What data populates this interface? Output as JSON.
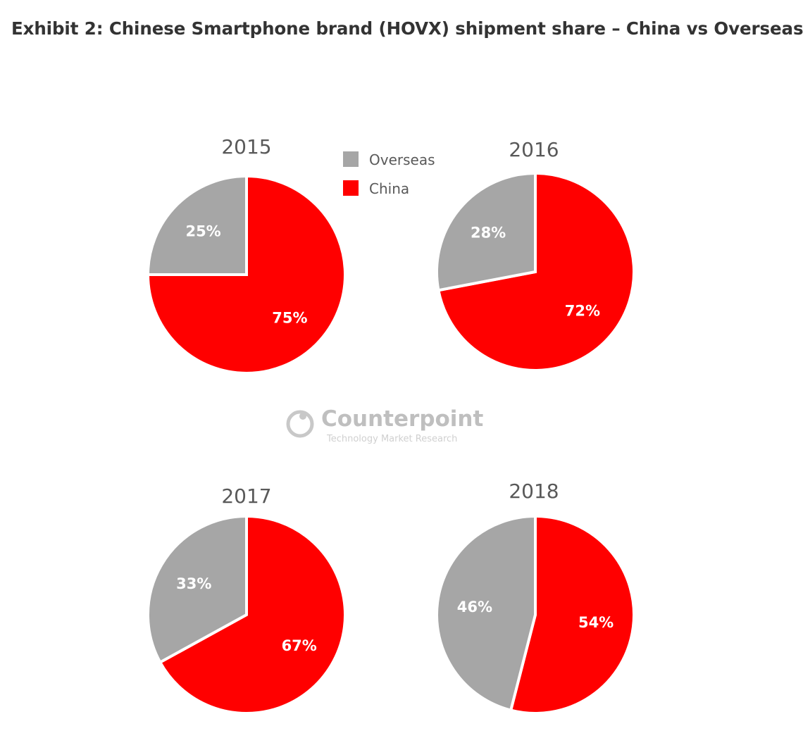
{
  "chart_data": {
    "title": "Exhibit 2: Chinese Smartphone brand (HOVX) shipment share – China vs Overseas",
    "type": "pie",
    "legend": [
      {
        "name": "Overseas",
        "color": "#a6a6a6"
      },
      {
        "name": "China",
        "color": "#ff0000"
      }
    ],
    "charts": [
      {
        "year": "2015",
        "slices": [
          {
            "name": "Overseas",
            "value": 25,
            "label": "25%"
          },
          {
            "name": "China",
            "value": 75,
            "label": "75%"
          }
        ]
      },
      {
        "year": "2016",
        "slices": [
          {
            "name": "Overseas",
            "value": 28,
            "label": "28%"
          },
          {
            "name": "China",
            "value": 72,
            "label": "72%"
          }
        ]
      },
      {
        "year": "2017",
        "slices": [
          {
            "name": "Overseas",
            "value": 33,
            "label": "33%"
          },
          {
            "name": "China",
            "value": 67,
            "label": "67%"
          }
        ]
      },
      {
        "year": "2018",
        "slices": [
          {
            "name": "Overseas",
            "value": 46,
            "label": "46%"
          },
          {
            "name": "China",
            "value": 54,
            "label": "54%"
          }
        ]
      }
    ],
    "watermark": {
      "name": "Counterpoint",
      "tagline": "Technology Market Research"
    }
  }
}
